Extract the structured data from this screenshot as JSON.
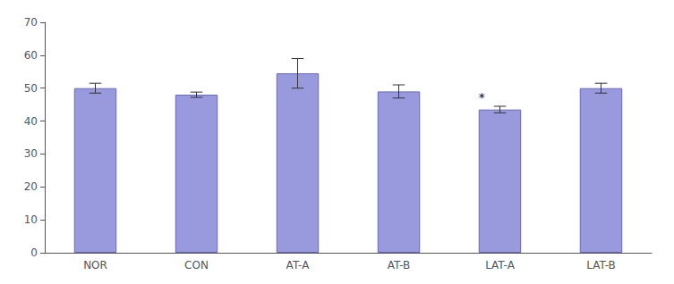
{
  "chart_data": {
    "type": "bar",
    "categories": [
      "NOR",
      "CON",
      "AT-A",
      "AT-B",
      "LAT-A",
      "LAT-B"
    ],
    "values": [
      50.0,
      48.0,
      54.5,
      49.0,
      43.5,
      50.0
    ],
    "errors": [
      1.5,
      0.8,
      4.5,
      2.0,
      1.0,
      1.5
    ],
    "color": "#9999dd",
    "ylim": [
      0,
      70
    ],
    "yticks": [
      0,
      10,
      20,
      30,
      40,
      50,
      60,
      70
    ],
    "grid": false,
    "annotations": [
      {
        "text": "*",
        "category": "LAT-A"
      }
    ]
  }
}
